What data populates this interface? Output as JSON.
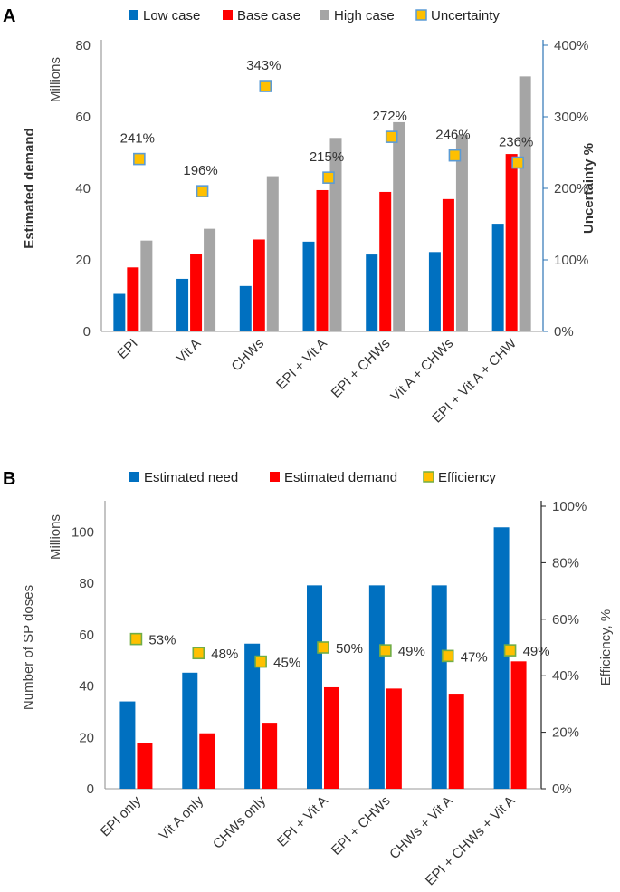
{
  "chart_data": [
    {
      "panel": "A",
      "type": "bar",
      "categories": [
        "EPI",
        "Vit A",
        "CHWs",
        "EPI + Vit A",
        "EPI + CHWs",
        "Vit A + CHWs",
        "EPI + Vit A + CHW"
      ],
      "series": [
        {
          "name": "Low case",
          "color": "#0070C0",
          "values": [
            10.5,
            14.7,
            12.7,
            25.1,
            21.5,
            22.2,
            30.1
          ]
        },
        {
          "name": "Base case",
          "color": "#FF0000",
          "values": [
            17.9,
            21.6,
            25.7,
            39.5,
            39.0,
            37.0,
            49.6
          ]
        },
        {
          "name": "High case",
          "color": "#A5A5A5",
          "values": [
            25.4,
            28.7,
            43.4,
            54.1,
            58.5,
            54.9,
            71.3
          ]
        }
      ],
      "secondary_series": {
        "name": "Uncertainty",
        "color": "#FFC000",
        "border": "#5B9BD5",
        "type": "scatter",
        "values": [
          241,
          196,
          343,
          215,
          272,
          246,
          236
        ],
        "labels": [
          "241%",
          "196%",
          "343%",
          "215%",
          "272%",
          "246%",
          "236%"
        ]
      },
      "ylabel": "Estimated demand",
      "yunit_label": "Millions",
      "ylim": [
        0,
        80
      ],
      "yticks": [
        "0",
        "20",
        "40",
        "60",
        "80"
      ],
      "y2label": "Uncertainty %",
      "y2lim": [
        0,
        400
      ],
      "y2ticks": [
        "0%",
        "100%",
        "200%",
        "300%",
        "400%"
      ],
      "legend": [
        "Low case",
        "Base case",
        "High case",
        "Uncertainty"
      ]
    },
    {
      "panel": "B",
      "type": "bar",
      "categories": [
        "EPI only",
        "Vit A only",
        "CHWs only",
        "EPI + Vit A",
        "EPI + CHWs",
        "CHWs + Vit A",
        "EPI + CHWs + Vit A"
      ],
      "series": [
        {
          "name": "Estimated need",
          "color": "#0070C0",
          "values": [
            34,
            45.2,
            56.5,
            79.2,
            79.2,
            79.2,
            101.8
          ]
        },
        {
          "name": "Estimated demand",
          "color": "#FF0000",
          "values": [
            17.9,
            21.6,
            25.7,
            39.5,
            39.0,
            37.0,
            49.6
          ]
        }
      ],
      "secondary_series": {
        "name": "Efficiency",
        "color": "#FFC000",
        "border": "#70AD47",
        "type": "scatter",
        "values": [
          53,
          48,
          45,
          50,
          49,
          47,
          49
        ],
        "labels": [
          "53%",
          "48%",
          "45%",
          "50%",
          "49%",
          "47%",
          "49%"
        ]
      },
      "ylabel": "Number of SP doses",
      "yunit_label": "Millions",
      "ylim": [
        0,
        110
      ],
      "yticks": [
        "0",
        "20",
        "40",
        "60",
        "80",
        "100"
      ],
      "y2label": "Efficiency, %",
      "y2lim": [
        0,
        100
      ],
      "y2ticks": [
        "0%",
        "20%",
        "40%",
        "60%",
        "80%",
        "100%"
      ],
      "legend": [
        "Estimated need",
        "Estimated demand",
        "Efficiency"
      ]
    }
  ],
  "panels": {
    "a": "A",
    "b": "B"
  }
}
